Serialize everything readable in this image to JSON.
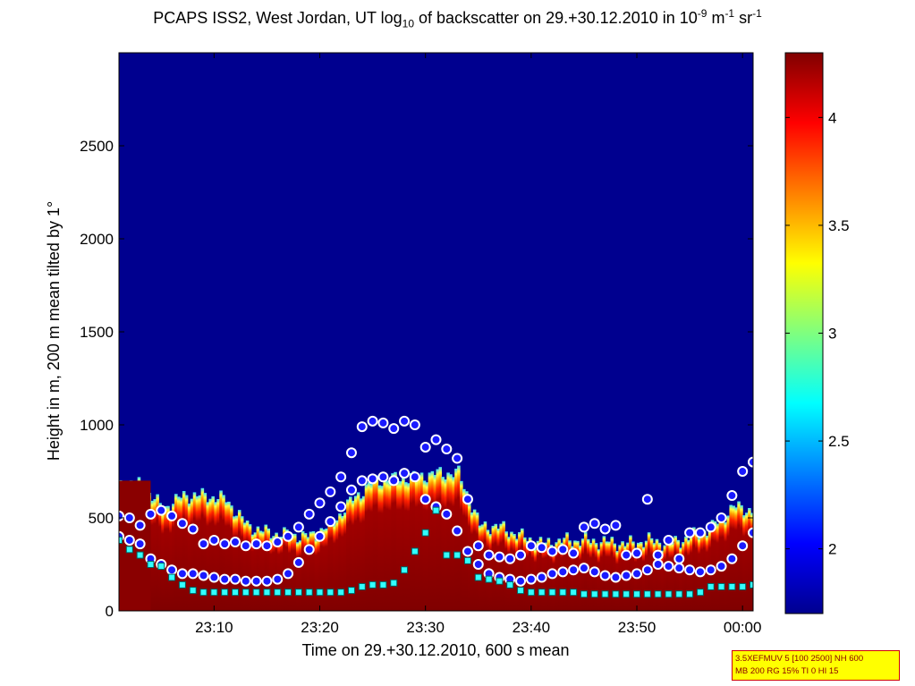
{
  "title": {
    "main": "PCAPS ISS2, West Jordan, UT log",
    "sub": "10",
    "after": " of backscatter on 29.+30.12.2010 in 10",
    "exp1": "-9",
    "unit_m": " m",
    "exp2": "-1",
    "unit_sr": " sr",
    "exp3": "-1"
  },
  "settings_box": {
    "line1": "3.5XEFMUV 5 [100 2500] NH 600",
    "line2": "MB 200 RG 15% TI 0 HI 15"
  },
  "colors": {
    "background": "#00008f",
    "high": "#800000",
    "marker_face": "#1a1aff",
    "marker_edge": "#ffffff",
    "square_face": "#33ffff"
  },
  "chart_data": {
    "type": "heatmap",
    "title": "PCAPS ISS2, West Jordan, UT log10 of backscatter on 29.+30.12.2010 in 10^-9 m^-1 sr^-1",
    "xlabel": "Time on 29.+30.12.2010, 600 s mean",
    "ylabel": "Height in m, 200 m mean tilted by 1°",
    "xlim": [
      "23:01",
      "00:01"
    ],
    "ylim": [
      0,
      3000
    ],
    "xticks": [
      {
        "label": "23:10",
        "minutes": 10
      },
      {
        "label": "23:20",
        "minutes": 20
      },
      {
        "label": "23:30",
        "minutes": 30
      },
      {
        "label": "23:40",
        "minutes": 40
      },
      {
        "label": "23:50",
        "minutes": 50
      },
      {
        "label": "00:00",
        "minutes": 60
      }
    ],
    "yticks": [
      0,
      500,
      1000,
      1500,
      2000,
      2500
    ],
    "colorbar": {
      "range": [
        1.7,
        4.3
      ],
      "ticks": [
        2,
        2.5,
        3,
        3.5,
        4
      ],
      "colormap": "jet"
    },
    "aerosol_top_height": {
      "minutes": [
        1,
        3,
        5,
        7,
        9,
        11,
        13,
        15,
        17,
        19,
        21,
        23,
        25,
        27,
        29,
        31,
        33,
        35,
        37,
        39,
        41,
        43,
        45,
        47,
        49,
        51,
        53,
        55,
        57,
        59,
        61
      ],
      "height_m": [
        680,
        680,
        550,
        620,
        620,
        600,
        460,
        420,
        410,
        400,
        470,
        600,
        700,
        710,
        720,
        740,
        740,
        460,
        450,
        400,
        360,
        380,
        380,
        370,
        360,
        380,
        360,
        400,
        450,
        560,
        540
      ]
    },
    "series": [
      {
        "marker": "circle",
        "minutes": [
          1,
          2,
          3,
          4,
          5,
          6,
          7,
          8,
          9,
          10,
          11,
          12,
          13,
          14,
          15,
          16,
          17,
          18,
          19,
          20,
          21,
          22,
          23,
          24,
          25,
          26,
          27,
          28,
          29,
          30,
          31,
          32,
          33,
          34,
          35,
          36,
          37,
          38,
          39,
          40,
          41,
          42,
          43,
          44,
          45,
          46,
          47,
          48,
          49,
          50,
          51,
          52,
          53,
          54,
          55,
          56,
          57,
          58,
          59,
          60,
          61
        ],
        "height_m": [
          510,
          500,
          460,
          520,
          540,
          510,
          470,
          440,
          360,
          380,
          360,
          370,
          350,
          360,
          350,
          370,
          400,
          450,
          520,
          580,
          640,
          720,
          850,
          990,
          1020,
          1010,
          980,
          1020,
          1000,
          880,
          920,
          870,
          820,
          600,
          350,
          300,
          290,
          280,
          300,
          350,
          340,
          320,
          330,
          310,
          450,
          470,
          440,
          460,
          300,
          310,
          600,
          300,
          380,
          280,
          420,
          420,
          450,
          500,
          620,
          750,
          800
        ]
      },
      {
        "marker": "circle",
        "minutes": [
          1,
          2,
          3,
          4,
          5,
          6,
          7,
          8,
          9,
          10,
          11,
          12,
          13,
          14,
          15,
          16,
          17,
          18,
          19,
          20,
          21,
          22,
          23,
          24,
          25,
          26,
          27,
          28,
          29,
          30,
          31,
          32,
          33,
          34,
          35,
          36,
          37,
          38,
          39,
          40,
          41,
          42,
          43,
          44,
          45,
          46,
          47,
          48,
          49,
          50,
          51,
          52,
          53,
          54,
          55,
          56,
          57,
          58,
          59,
          60,
          61
        ],
        "height_m": [
          400,
          380,
          360,
          280,
          250,
          220,
          200,
          200,
          190,
          180,
          170,
          170,
          160,
          160,
          160,
          170,
          200,
          260,
          330,
          400,
          480,
          560,
          650,
          700,
          710,
          720,
          700,
          740,
          720,
          600,
          560,
          520,
          430,
          320,
          250,
          200,
          180,
          170,
          160,
          170,
          180,
          200,
          210,
          220,
          230,
          210,
          190,
          180,
          190,
          200,
          220,
          250,
          240,
          230,
          220,
          210,
          220,
          240,
          280,
          350,
          420
        ]
      },
      {
        "marker": "square",
        "minutes": [
          1,
          2,
          3,
          4,
          5,
          6,
          7,
          8,
          9,
          10,
          11,
          12,
          13,
          14,
          15,
          16,
          17,
          18,
          19,
          20,
          21,
          22,
          23,
          24,
          25,
          26,
          27,
          28,
          29,
          30,
          31,
          32,
          33,
          34,
          35,
          36,
          37,
          38,
          39,
          40,
          41,
          42,
          43,
          44,
          45,
          46,
          47,
          48,
          49,
          50,
          51,
          52,
          53,
          54,
          55,
          56,
          57,
          58,
          59,
          60,
          61
        ],
        "height_m": [
          380,
          330,
          300,
          250,
          240,
          180,
          140,
          110,
          100,
          100,
          100,
          100,
          100,
          100,
          100,
          100,
          100,
          100,
          100,
          100,
          100,
          100,
          110,
          130,
          140,
          140,
          150,
          220,
          320,
          420,
          540,
          300,
          300,
          270,
          180,
          170,
          160,
          140,
          110,
          100,
          100,
          100,
          100,
          100,
          90,
          90,
          90,
          90,
          90,
          90,
          90,
          90,
          90,
          90,
          90,
          100,
          130,
          130,
          130,
          130,
          140
        ]
      }
    ]
  }
}
